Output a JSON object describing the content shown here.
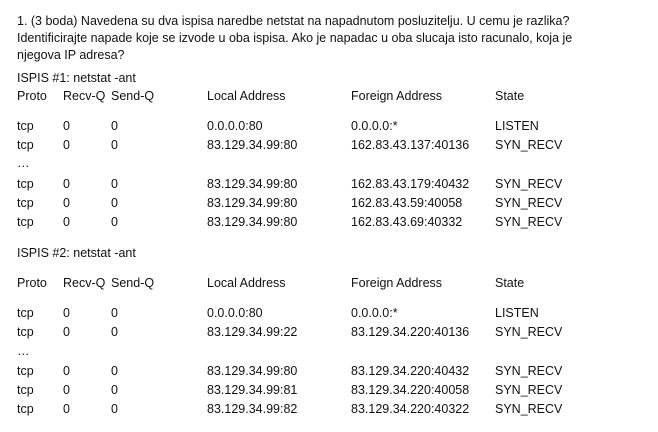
{
  "question": {
    "line1": "1. (3 boda) Navedena su dva ispisa naredbe netstat na napadnutom posluzitelju. U cemu je razlika?",
    "line2": "Identificirajte napade koje se izvode u oba ispisa. Ako je napadac u oba slucaja isto racunalo, koja je",
    "line3": "njegova IP adresa?"
  },
  "listing1": {
    "title": "ISPIS #1:  netstat -ant",
    "headers": [
      "Proto",
      "Recv-Q",
      "Send-Q",
      "Local Address",
      "Foreign Address",
      "State"
    ],
    "rows_top": [
      [
        "tcp",
        "0",
        "0",
        "0.0.0.0:80",
        "0.0.0.0:*",
        "LISTEN"
      ],
      [
        "tcp",
        "0",
        "0",
        "83.129.34.99:80",
        "162.83.43.137:40136",
        "SYN_RECV"
      ]
    ],
    "ellipsis": "…",
    "rows_bottom": [
      [
        "tcp",
        "0",
        "0",
        "83.129.34.99:80",
        "162.83.43.179:40432",
        "SYN_RECV"
      ],
      [
        "tcp",
        "0",
        "0",
        "83.129.34.99:80",
        "162.83.43.59:40058",
        "SYN_RECV"
      ],
      [
        "tcp",
        "0",
        "0",
        "83.129.34.99:80",
        "162.83.43.69:40332",
        "SYN_RECV"
      ]
    ]
  },
  "listing2": {
    "title": "ISPIS #2:  netstat -ant",
    "headers": [
      "Proto",
      "Recv-Q",
      "Send-Q",
      "Local Address",
      "Foreign Address",
      "State"
    ],
    "rows_top": [
      [
        "tcp",
        "0",
        "0",
        "0.0.0.0:80",
        "0.0.0.0:*",
        "LISTEN"
      ],
      [
        "tcp",
        "0",
        "0",
        "83.129.34.99:22",
        "83.129.34.220:40136",
        "SYN_RECV"
      ]
    ],
    "ellipsis": "…",
    "rows_bottom": [
      [
        "tcp",
        "0",
        "0",
        "83.129.34.99:80",
        "83.129.34.220:40432",
        "SYN_RECV"
      ],
      [
        "tcp",
        "0",
        "0",
        "83.129.34.99:81",
        "83.129.34.220:40058",
        "SYN_RECV"
      ],
      [
        "tcp",
        "0",
        "0",
        "83.129.34.99:82",
        "83.129.34.220:40322",
        "SYN_RECV"
      ]
    ]
  }
}
